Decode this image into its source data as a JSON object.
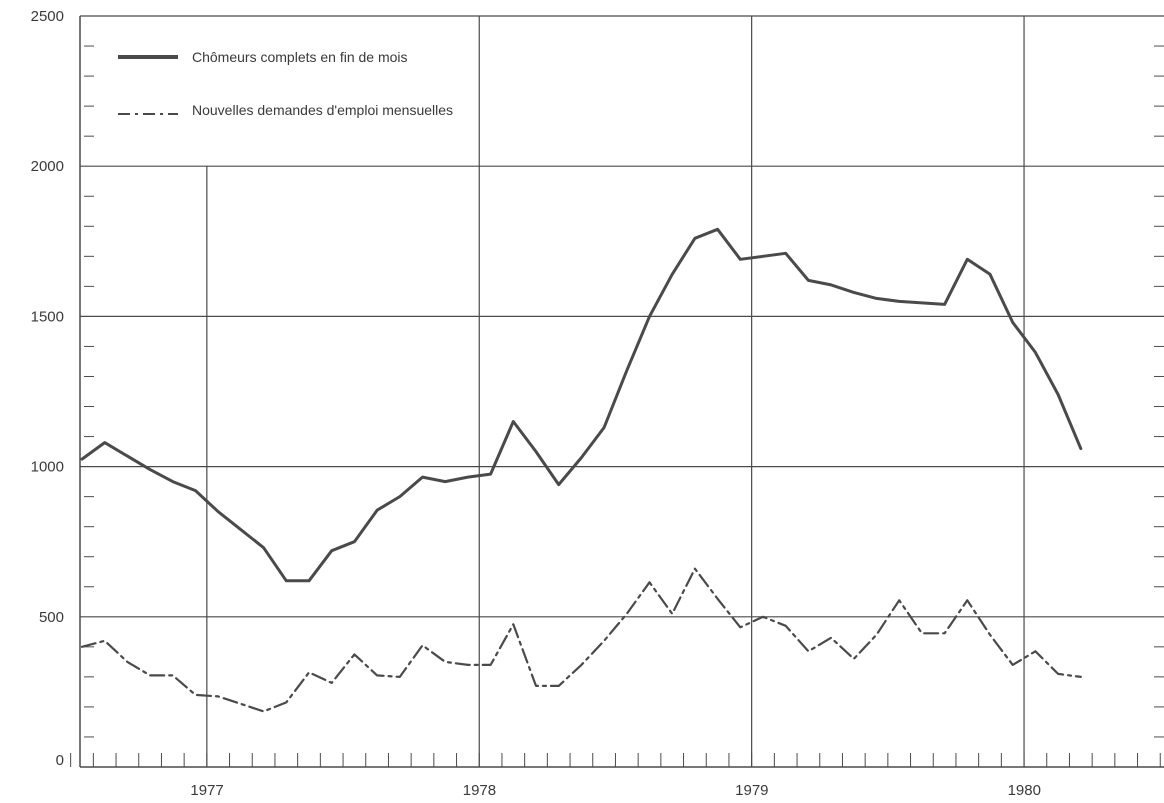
{
  "colors": {
    "ink": "#4a4a4a",
    "grid": "#4a4a4a",
    "background": "#ffffff"
  },
  "chart_data": {
    "type": "line",
    "title": "",
    "xlabel": "",
    "ylabel": "",
    "ylim": [
      0,
      2500
    ],
    "y_ticks": [
      "0",
      "500",
      "1000",
      "1500",
      "2000",
      "2500"
    ],
    "x_tick_labels": [
      "1977",
      "1978",
      "1979",
      "1980"
    ],
    "grid": true,
    "legend_position": "top-left",
    "months": [
      "1976-07",
      "1976-08",
      "1976-09",
      "1976-10",
      "1976-11",
      "1976-12",
      "1977-01",
      "1977-02",
      "1977-03",
      "1977-04",
      "1977-05",
      "1977-06",
      "1977-07",
      "1977-08",
      "1977-09",
      "1977-10",
      "1977-11",
      "1977-12",
      "1978-01",
      "1978-02",
      "1978-03",
      "1978-04",
      "1978-05",
      "1978-06",
      "1978-07",
      "1978-08",
      "1978-09",
      "1978-10",
      "1978-11",
      "1978-12",
      "1979-01",
      "1979-02",
      "1979-03",
      "1979-04",
      "1979-05",
      "1979-06",
      "1979-07",
      "1979-08",
      "1979-09",
      "1979-10",
      "1979-11",
      "1979-12",
      "1980-01",
      "1980-02",
      "1980-03",
      "1980-04",
      "1980-05",
      "1980-06",
      "1980-07",
      "1980-08",
      "1980-09",
      "1980-10",
      "1980-11",
      "1980-12"
    ],
    "series": [
      {
        "name": "Chômeurs complets en fin de mois",
        "style": "solid",
        "values": [
          1025,
          1080,
          1035,
          990,
          950,
          920,
          850,
          790,
          730,
          620,
          620,
          720,
          750,
          855,
          900,
          965,
          950,
          965,
          975,
          1150,
          1050,
          940,
          1030,
          1130,
          1320,
          1500,
          1640,
          1760,
          1790,
          1690,
          1700,
          1710,
          1620,
          1605,
          1580,
          1560,
          1550,
          1545,
          1540,
          1690,
          1640,
          1480,
          1380,
          1240,
          1060,
          null,
          null,
          null,
          null,
          null,
          null,
          null,
          null,
          null
        ]
      },
      {
        "name": "Nouvelles demandes d'emploi mensuelles",
        "style": "dash-dot",
        "values": [
          400,
          420,
          350,
          305,
          305,
          240,
          235,
          210,
          185,
          215,
          315,
          280,
          375,
          305,
          300,
          405,
          350,
          340,
          340,
          475,
          270,
          270,
          340,
          420,
          510,
          615,
          510,
          660,
          560,
          465,
          500,
          470,
          385,
          430,
          360,
          440,
          555,
          445,
          445,
          555,
          440,
          340,
          385,
          310,
          300,
          null,
          null,
          null,
          null,
          null,
          null,
          null,
          null,
          null
        ]
      }
    ]
  }
}
